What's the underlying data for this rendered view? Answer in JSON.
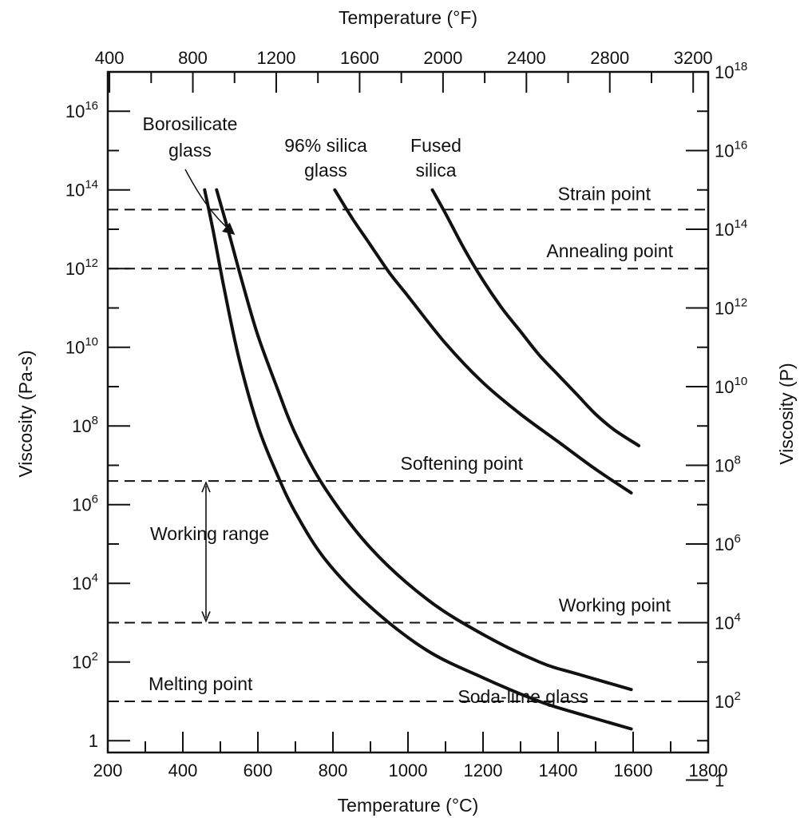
{
  "chart_data": {
    "type": "line",
    "title": "",
    "xlabel": "Temperature (°C)",
    "x2label": "Temperature (°F)",
    "ylabel": "Viscosity (Pa-s)",
    "y2label": "Viscosity (P)",
    "xlim": [
      200,
      1800
    ],
    "x2lim": [
      392,
      3272
    ],
    "ylim_log10": [
      -0.3,
      17.0
    ],
    "y2lim_log10": [
      0.7,
      18.0
    ],
    "yscale": "log",
    "grid": false,
    "x_ticks": [
      "200",
      "400",
      "600",
      "800",
      "1000",
      "1200",
      "1400",
      "1600",
      "1800"
    ],
    "x_tick_values": [
      200,
      400,
      600,
      800,
      1000,
      1200,
      1400,
      1600,
      1800
    ],
    "x2_ticks": [
      "400",
      "800",
      "1200",
      "1600",
      "2000",
      "2400",
      "2800",
      "3200"
    ],
    "x2_tick_values": [
      400,
      800,
      1200,
      1600,
      2000,
      2400,
      2800,
      3200
    ],
    "y_ticks": [
      {
        "base": "1",
        "exp": "",
        "log": 0
      },
      {
        "base": "10",
        "exp": "2",
        "log": 2
      },
      {
        "base": "10",
        "exp": "4",
        "log": 4
      },
      {
        "base": "10",
        "exp": "6",
        "log": 6
      },
      {
        "base": "10",
        "exp": "8",
        "log": 8
      },
      {
        "base": "10",
        "exp": "10",
        "log": 10
      },
      {
        "base": "10",
        "exp": "12",
        "log": 12
      },
      {
        "base": "10",
        "exp": "14",
        "log": 14
      },
      {
        "base": "10",
        "exp": "16",
        "log": 16
      }
    ],
    "y2_ticks": [
      {
        "base": "1",
        "exp": "",
        "log": 0
      },
      {
        "base": "10",
        "exp": "2",
        "log": 2
      },
      {
        "base": "10",
        "exp": "4",
        "log": 4
      },
      {
        "base": "10",
        "exp": "6",
        "log": 6
      },
      {
        "base": "10",
        "exp": "8",
        "log": 8
      },
      {
        "base": "10",
        "exp": "10",
        "log": 10
      },
      {
        "base": "10",
        "exp": "12",
        "log": 12
      },
      {
        "base": "10",
        "exp": "14",
        "log": 14
      },
      {
        "base": "10",
        "exp": "16",
        "log": 16
      },
      {
        "base": "10",
        "exp": "18",
        "log": 18
      }
    ],
    "series": [
      {
        "name": "Soda-lime glass",
        "x": [
          458,
          480,
          510,
          550,
          600,
          650,
          700,
          780,
          900,
          1050,
          1200,
          1350,
          1450,
          1595
        ],
        "y_log10": [
          14.0,
          13.0,
          11.5,
          9.7,
          8.0,
          6.8,
          5.8,
          4.6,
          3.4,
          2.3,
          1.6,
          1.0,
          0.7,
          0.3
        ]
      },
      {
        "name": "Borosilicate glass",
        "x": [
          490,
          520,
          560,
          600,
          650,
          700,
          780,
          900,
          1050,
          1200,
          1350,
          1450,
          1595
        ],
        "y_log10": [
          14.0,
          13.0,
          11.6,
          10.3,
          9.0,
          7.8,
          6.4,
          4.9,
          3.6,
          2.7,
          2.0,
          1.7,
          1.3
        ]
      },
      {
        "name": "96% silica glass",
        "x": [
          805,
          850,
          900,
          950,
          1000,
          1100,
          1200,
          1300,
          1400,
          1500,
          1595
        ],
        "y_log10": [
          14.0,
          13.3,
          12.6,
          11.9,
          11.3,
          10.1,
          9.1,
          8.3,
          7.6,
          6.9,
          6.3
        ]
      },
      {
        "name": "Fused silica",
        "x": [
          1065,
          1100,
          1150,
          1200,
          1250,
          1300,
          1350,
          1400,
          1450,
          1500,
          1550,
          1615
        ],
        "y_log10": [
          14.0,
          13.4,
          12.5,
          11.7,
          11.0,
          10.4,
          9.8,
          9.3,
          8.8,
          8.3,
          7.9,
          7.5
        ]
      }
    ],
    "reference_lines": [
      {
        "name": "Strain point",
        "y_log10": 13.5
      },
      {
        "name": "Annealing point",
        "y_log10": 12.0
      },
      {
        "name": "Softening point",
        "y_log10": 6.6
      },
      {
        "name": "Working point",
        "y_log10": 3.0
      },
      {
        "name": "Melting point",
        "y_log10": 1.0
      }
    ],
    "annotations": {
      "borosilicate_line1": "Borosilicate",
      "borosilicate_line2": "glass",
      "silica96_line1": "96% silica",
      "silica96_line2": "glass",
      "fused_line1": "Fused",
      "fused_line2": "silica",
      "soda_lime": "Soda-lime glass",
      "working_range": "Working range",
      "working_range_from_log10": 6.6,
      "working_range_to_log10": 3.0
    }
  }
}
